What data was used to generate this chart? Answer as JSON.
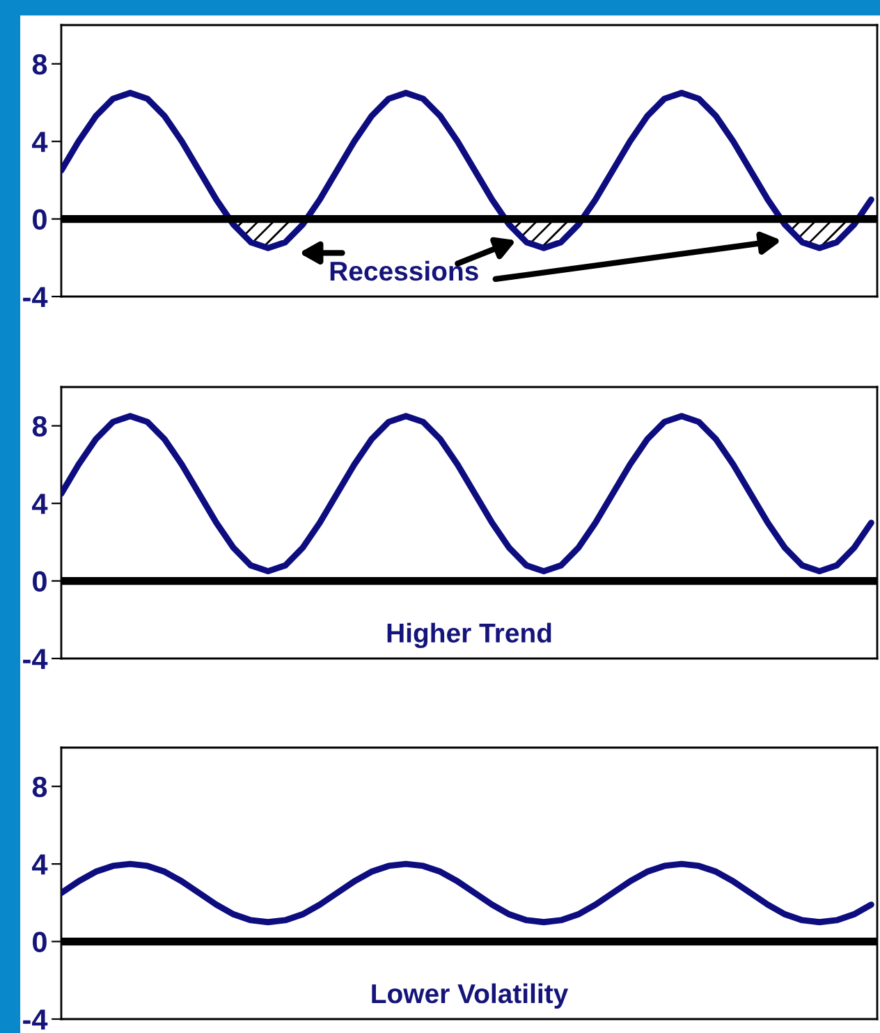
{
  "chart_data": [
    {
      "type": "line",
      "categories": [
        null,
        null,
        null,
        null,
        null,
        null,
        null,
        null,
        null,
        null,
        null,
        null,
        null,
        null,
        null,
        null,
        null,
        null,
        null,
        null,
        null,
        null,
        null,
        null,
        null,
        null,
        null,
        null,
        null,
        null,
        null,
        null,
        null,
        null,
        null,
        null,
        null,
        null,
        null,
        null,
        null,
        null,
        null,
        null,
        null,
        null,
        null,
        null
      ],
      "ylim": [
        -4,
        10
      ],
      "yticks": [
        -4,
        0,
        4,
        8
      ],
      "tick_labels": "y",
      "grid": false,
      "legend": false,
      "series": [
        {
          "color": "#0d0d80",
          "values": [
            2.5,
            4.0,
            5.3,
            6.2,
            6.5,
            6.2,
            5.3,
            4.0,
            2.5,
            1.0,
            -0.3,
            -1.2,
            -1.5,
            -1.2,
            -0.3,
            1.0,
            2.5,
            4.0,
            5.3,
            6.2,
            6.5,
            6.2,
            5.3,
            4.0,
            2.5,
            1.0,
            -0.3,
            -1.2,
            -1.5,
            -1.2,
            -0.3,
            1.0,
            2.5,
            4.0,
            5.3,
            6.2,
            6.5,
            6.2,
            5.3,
            4.0,
            2.5,
            1.0,
            -0.3,
            -1.2,
            -1.5,
            -1.2,
            -0.3,
            1.0
          ]
        },
        {
          "type": "area",
          "color": "#000000",
          "values": [
            null,
            null,
            null,
            null,
            null,
            null,
            null,
            null,
            null,
            null,
            -0.3,
            -1.2,
            -1.5,
            -1.2,
            -0.3,
            null,
            null,
            null,
            null,
            null,
            null,
            null,
            null,
            null,
            null,
            null,
            -0.3,
            -1.2,
            -1.5,
            -1.2,
            -0.3,
            null,
            null,
            null,
            null,
            null,
            null,
            null,
            null,
            null,
            null,
            null,
            -0.3,
            -1.2,
            -1.5,
            -1.2,
            -0.3,
            null
          ]
        }
      ],
      "ref_lines": [
        {
          "axis": "y",
          "value": 0,
          "color": "#000000"
        }
      ],
      "annotations": [
        "Recessions"
      ]
    },
    {
      "type": "line",
      "categories": [
        null,
        null,
        null,
        null,
        null,
        null,
        null,
        null,
        null,
        null,
        null,
        null,
        null,
        null,
        null,
        null,
        null,
        null,
        null,
        null,
        null,
        null,
        null,
        null,
        null,
        null,
        null,
        null,
        null,
        null,
        null,
        null,
        null,
        null,
        null,
        null,
        null,
        null,
        null,
        null,
        null,
        null,
        null,
        null,
        null,
        null,
        null,
        null
      ],
      "ylim": [
        -4,
        10
      ],
      "yticks": [
        -4,
        0,
        4,
        8
      ],
      "tick_labels": "y",
      "grid": false,
      "legend": false,
      "series": [
        {
          "color": "#0d0d80",
          "values": [
            4.5,
            6.0,
            7.3,
            8.2,
            8.5,
            8.2,
            7.3,
            6.0,
            4.5,
            3.0,
            1.7,
            0.8,
            0.5,
            0.8,
            1.7,
            3.0,
            4.5,
            6.0,
            7.3,
            8.2,
            8.5,
            8.2,
            7.3,
            6.0,
            4.5,
            3.0,
            1.7,
            0.8,
            0.5,
            0.8,
            1.7,
            3.0,
            4.5,
            6.0,
            7.3,
            8.2,
            8.5,
            8.2,
            7.3,
            6.0,
            4.5,
            3.0,
            1.7,
            0.8,
            0.5,
            0.8,
            1.7,
            3.0
          ]
        }
      ],
      "ref_lines": [
        {
          "axis": "y",
          "value": 0,
          "color": "#000000"
        }
      ],
      "annotations": [
        "Higher Trend"
      ]
    },
    {
      "type": "line",
      "categories": [
        null,
        null,
        null,
        null,
        null,
        null,
        null,
        null,
        null,
        null,
        null,
        null,
        null,
        null,
        null,
        null,
        null,
        null,
        null,
        null,
        null,
        null,
        null,
        null,
        null,
        null,
        null,
        null,
        null,
        null,
        null,
        null,
        null,
        null,
        null,
        null,
        null,
        null,
        null,
        null,
        null,
        null,
        null,
        null,
        null,
        null,
        null,
        null
      ],
      "ylim": [
        -4,
        10
      ],
      "yticks": [
        -4,
        0,
        4,
        8
      ],
      "tick_labels": "y",
      "grid": false,
      "legend": false,
      "series": [
        {
          "color": "#0d0d80",
          "values": [
            2.5,
            3.1,
            3.6,
            3.9,
            4.0,
            3.9,
            3.6,
            3.1,
            2.5,
            1.9,
            1.4,
            1.1,
            1.0,
            1.1,
            1.4,
            1.9,
            2.5,
            3.1,
            3.6,
            3.9,
            4.0,
            3.9,
            3.6,
            3.1,
            2.5,
            1.9,
            1.4,
            1.1,
            1.0,
            1.1,
            1.4,
            1.9,
            2.5,
            3.1,
            3.6,
            3.9,
            4.0,
            3.9,
            3.6,
            3.1,
            2.5,
            1.9,
            1.4,
            1.1,
            1.0,
            1.1,
            1.4,
            1.9
          ]
        }
      ],
      "ref_lines": [
        {
          "axis": "y",
          "value": 0,
          "color": "#000000"
        }
      ],
      "annotations": [
        "Lower Volatility"
      ]
    }
  ]
}
